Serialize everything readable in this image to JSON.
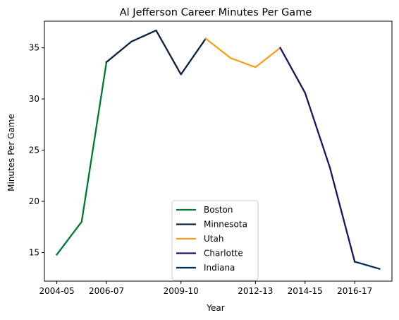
{
  "chart_data": {
    "type": "line",
    "title": "Al Jefferson Career Minutes Per Game",
    "xlabel": "Year",
    "ylabel": "Minutes Per Game",
    "seasons": [
      "2004-05",
      "2005-06",
      "2006-07",
      "2007-08",
      "2008-09",
      "2009-10",
      "2010-11",
      "2011-12",
      "2012-13",
      "2013-14",
      "2014-15",
      "2015-16",
      "2016-17",
      "2017-18"
    ],
    "xticks": [
      "2004-05",
      "2006-07",
      "2009-10",
      "2012-13",
      "2014-15",
      "2016-17"
    ],
    "yticks": [
      15,
      20,
      25,
      30,
      35
    ],
    "ylim": [
      12.2,
      37.6
    ],
    "grid": false,
    "legend_position": "lower center",
    "series": [
      {
        "name": "Boston",
        "color": "#007A33",
        "x": [
          "2004-05",
          "2005-06",
          "2006-07"
        ],
        "values": [
          14.8,
          18.0,
          33.6
        ]
      },
      {
        "name": "Minnesota",
        "color": "#0C2340",
        "x": [
          "2006-07",
          "2007-08",
          "2008-09",
          "2009-10",
          "2010-11"
        ],
        "values": [
          33.6,
          35.6,
          36.7,
          32.4,
          35.9
        ]
      },
      {
        "name": "Utah",
        "color": "#F9A01B",
        "x": [
          "2010-11",
          "2011-12",
          "2012-13",
          "2013-14"
        ],
        "values": [
          35.9,
          34.0,
          33.1,
          35.0
        ]
      },
      {
        "name": "Charlotte",
        "color": "#1D1160",
        "x": [
          "2013-14",
          "2014-15",
          "2015-16",
          "2016-17"
        ],
        "values": [
          35.0,
          30.6,
          23.3,
          14.1
        ]
      },
      {
        "name": "Indiana",
        "color": "#002D62",
        "x": [
          "2016-17",
          "2017-18"
        ],
        "values": [
          14.1,
          13.4
        ]
      }
    ]
  }
}
